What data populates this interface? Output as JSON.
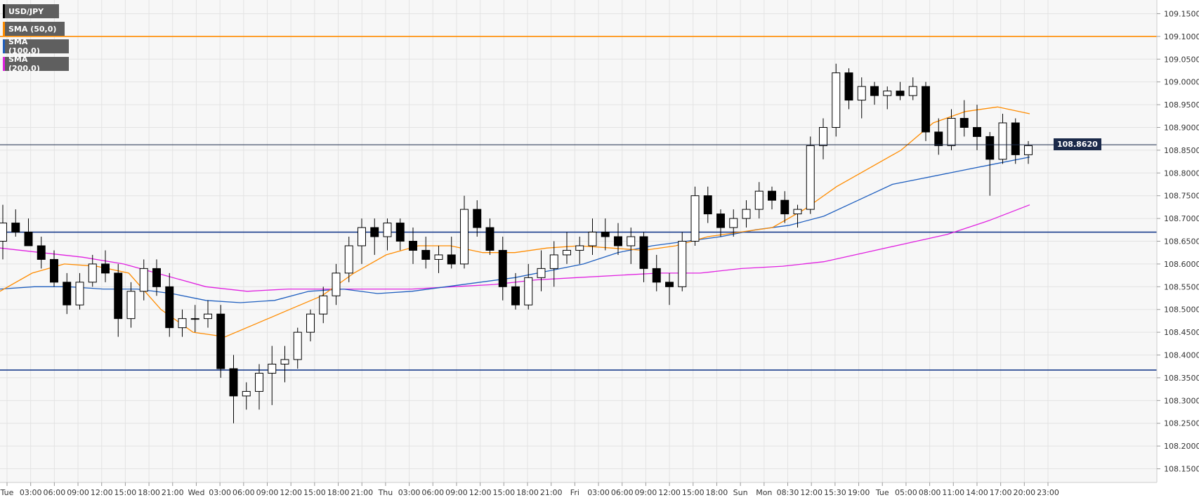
{
  "chart_data": {
    "type": "candlestick",
    "symbol": "USD/JPY",
    "y_axis": {
      "range": [
        108.12,
        109.18
      ],
      "ticks": [
        "109.1500",
        "109.1000",
        "109.0500",
        "109.0000",
        "108.9500",
        "108.9000",
        "108.8500",
        "108.8000",
        "108.7500",
        "108.7000",
        "108.6500",
        "108.6000",
        "108.5500",
        "108.5000",
        "108.4500",
        "108.4000",
        "108.3500",
        "108.3000",
        "108.2500",
        "108.2000",
        "108.1500"
      ]
    },
    "x_axis": {
      "ticks": [
        "Tue",
        "03:00",
        "06:00",
        "09:00",
        "12:00",
        "15:00",
        "18:00",
        "21:00",
        "Wed",
        "03:00",
        "06:00",
        "09:00",
        "12:00",
        "15:00",
        "18:00",
        "21:00",
        "Thu",
        "03:00",
        "06:00",
        "09:00",
        "12:00",
        "15:00",
        "18:00",
        "21:00",
        "Fri",
        "03:00",
        "06:00",
        "09:00",
        "12:00",
        "15:00",
        "18:00",
        "Sun",
        "Mon",
        "08:30",
        "12:00",
        "15:30",
        "19:00",
        "Tue",
        "05:00",
        "08:00",
        "11:00",
        "14:00",
        "17:00",
        "20:00",
        "23:00"
      ]
    },
    "current_price": "108.8620",
    "horizontal_levels": [
      {
        "price": 109.1,
        "color": "#ff8c00"
      },
      {
        "price": 108.67,
        "color": "#1a3c8c"
      },
      {
        "price": 108.367,
        "color": "#1a3c8c"
      }
    ],
    "legend": [
      {
        "label": "USD/JPY",
        "color": "#000000"
      },
      {
        "label": "SMA (50,0)",
        "color": "#ff8c00"
      },
      {
        "label": "SMA (100,0)",
        "color": "#1f5fbf"
      },
      {
        "label": "SMA (200,0)",
        "color": "#e020e0"
      }
    ],
    "sma_keypoints": {
      "sma50": [
        108.54,
        108.58,
        108.6,
        108.595,
        108.58,
        108.5,
        108.45,
        108.44,
        108.47,
        108.5,
        108.53,
        108.58,
        108.62,
        108.64,
        108.64,
        108.625,
        108.625,
        108.635,
        108.64,
        108.635,
        108.63,
        108.64,
        108.66,
        108.67,
        108.68,
        108.72,
        108.77,
        108.81,
        108.85,
        108.91,
        108.935,
        108.945,
        108.93
      ],
      "sma100": [
        108.545,
        108.55,
        108.55,
        108.545,
        108.545,
        108.535,
        108.52,
        108.515,
        108.52,
        108.54,
        108.545,
        108.535,
        108.54,
        108.55,
        108.56,
        108.57,
        108.585,
        108.6,
        108.625,
        108.64,
        108.65,
        108.66,
        108.675,
        108.685,
        108.705,
        108.74,
        108.775,
        108.79,
        108.805,
        108.82,
        108.835
      ],
      "sma200": [
        108.635,
        108.625,
        108.615,
        108.6,
        108.575,
        108.55,
        108.54,
        108.545,
        108.545,
        108.545,
        108.545,
        108.55,
        108.555,
        108.565,
        108.57,
        108.575,
        108.58,
        108.58,
        108.59,
        108.595,
        108.605,
        108.625,
        108.645,
        108.665,
        108.695,
        108.73
      ],
      "x_span": [
        0.0,
        1.0
      ]
    },
    "candles_ohlc": [
      [
        108.65,
        108.73,
        108.61,
        108.69
      ],
      [
        108.69,
        108.72,
        108.66,
        108.67
      ],
      [
        108.67,
        108.7,
        108.64,
        108.64
      ],
      [
        108.64,
        108.66,
        108.59,
        108.61
      ],
      [
        108.61,
        108.63,
        108.55,
        108.56
      ],
      [
        108.56,
        108.58,
        108.49,
        108.51
      ],
      [
        108.51,
        108.58,
        108.5,
        108.56
      ],
      [
        108.56,
        108.62,
        108.55,
        108.6
      ],
      [
        108.6,
        108.63,
        108.56,
        108.58
      ],
      [
        108.58,
        108.6,
        108.44,
        108.48
      ],
      [
        108.48,
        108.56,
        108.46,
        108.54
      ],
      [
        108.54,
        108.61,
        108.52,
        108.59
      ],
      [
        108.59,
        108.61,
        108.53,
        108.55
      ],
      [
        108.55,
        108.58,
        108.44,
        108.46
      ],
      [
        108.46,
        108.5,
        108.44,
        108.48
      ],
      [
        108.48,
        108.51,
        108.45,
        108.48
      ],
      [
        108.48,
        108.52,
        108.46,
        108.49
      ],
      [
        108.49,
        108.51,
        108.35,
        108.37
      ],
      [
        108.37,
        108.4,
        108.25,
        108.31
      ],
      [
        108.31,
        108.34,
        108.28,
        108.32
      ],
      [
        108.32,
        108.38,
        108.28,
        108.36
      ],
      [
        108.36,
        108.42,
        108.29,
        108.38
      ],
      [
        108.38,
        108.42,
        108.34,
        108.39
      ],
      [
        108.39,
        108.46,
        108.37,
        108.45
      ],
      [
        108.45,
        108.5,
        108.43,
        108.49
      ],
      [
        108.49,
        108.55,
        108.47,
        108.53
      ],
      [
        108.53,
        108.6,
        108.51,
        108.58
      ],
      [
        108.58,
        108.66,
        108.56,
        108.64
      ],
      [
        108.64,
        108.7,
        108.6,
        108.68
      ],
      [
        108.68,
        108.7,
        108.62,
        108.66
      ],
      [
        108.66,
        108.7,
        108.63,
        108.69
      ],
      [
        108.69,
        108.7,
        108.63,
        108.65
      ],
      [
        108.65,
        108.68,
        108.6,
        108.63
      ],
      [
        108.63,
        108.66,
        108.59,
        108.61
      ],
      [
        108.61,
        108.64,
        108.58,
        108.62
      ],
      [
        108.62,
        108.66,
        108.59,
        108.6
      ],
      [
        108.6,
        108.75,
        108.59,
        108.72
      ],
      [
        108.72,
        108.74,
        108.66,
        108.68
      ],
      [
        108.68,
        108.7,
        108.62,
        108.63
      ],
      [
        108.63,
        108.66,
        108.52,
        108.55
      ],
      [
        108.55,
        108.58,
        108.5,
        108.51
      ],
      [
        108.51,
        108.6,
        108.5,
        108.57
      ],
      [
        108.57,
        108.63,
        108.54,
        108.59
      ],
      [
        108.59,
        108.65,
        108.55,
        108.62
      ],
      [
        108.62,
        108.67,
        108.6,
        108.63
      ],
      [
        108.63,
        108.66,
        108.6,
        108.64
      ],
      [
        108.64,
        108.7,
        108.62,
        108.67
      ],
      [
        108.67,
        108.7,
        108.63,
        108.66
      ],
      [
        108.66,
        108.69,
        108.62,
        108.64
      ],
      [
        108.64,
        108.68,
        108.6,
        108.66
      ],
      [
        108.66,
        108.67,
        108.56,
        108.59
      ],
      [
        108.59,
        108.62,
        108.54,
        108.56
      ],
      [
        108.56,
        108.58,
        108.51,
        108.55
      ],
      [
        108.55,
        108.67,
        108.54,
        108.65
      ],
      [
        108.65,
        108.77,
        108.64,
        108.75
      ],
      [
        108.75,
        108.77,
        108.69,
        108.71
      ],
      [
        108.71,
        108.72,
        108.66,
        108.68
      ],
      [
        108.68,
        108.72,
        108.66,
        108.7
      ],
      [
        108.7,
        108.74,
        108.68,
        108.72
      ],
      [
        108.72,
        108.78,
        108.7,
        108.76
      ],
      [
        108.76,
        108.77,
        108.72,
        108.74
      ],
      [
        108.74,
        108.76,
        108.69,
        108.71
      ],
      [
        108.71,
        108.73,
        108.68,
        108.72
      ],
      [
        108.72,
        108.88,
        108.71,
        108.86
      ],
      [
        108.86,
        108.92,
        108.83,
        108.9
      ],
      [
        108.9,
        109.04,
        108.88,
        109.02
      ],
      [
        109.02,
        109.03,
        108.94,
        108.96
      ],
      [
        108.96,
        109.01,
        108.92,
        108.99
      ],
      [
        108.99,
        109.0,
        108.95,
        108.97
      ],
      [
        108.97,
        108.99,
        108.94,
        108.98
      ],
      [
        108.98,
        109.0,
        108.96,
        108.97
      ],
      [
        108.97,
        109.01,
        108.96,
        108.99
      ],
      [
        108.99,
        109.0,
        108.87,
        108.89
      ],
      [
        108.89,
        108.92,
        108.84,
        108.86
      ],
      [
        108.86,
        108.94,
        108.85,
        108.92
      ],
      [
        108.92,
        108.96,
        108.88,
        108.9
      ],
      [
        108.9,
        108.95,
        108.85,
        108.88
      ],
      [
        108.88,
        108.89,
        108.75,
        108.83
      ],
      [
        108.83,
        108.93,
        108.82,
        108.91
      ],
      [
        108.91,
        108.92,
        108.82,
        108.84
      ],
      [
        108.84,
        108.87,
        108.82,
        108.86
      ]
    ]
  }
}
